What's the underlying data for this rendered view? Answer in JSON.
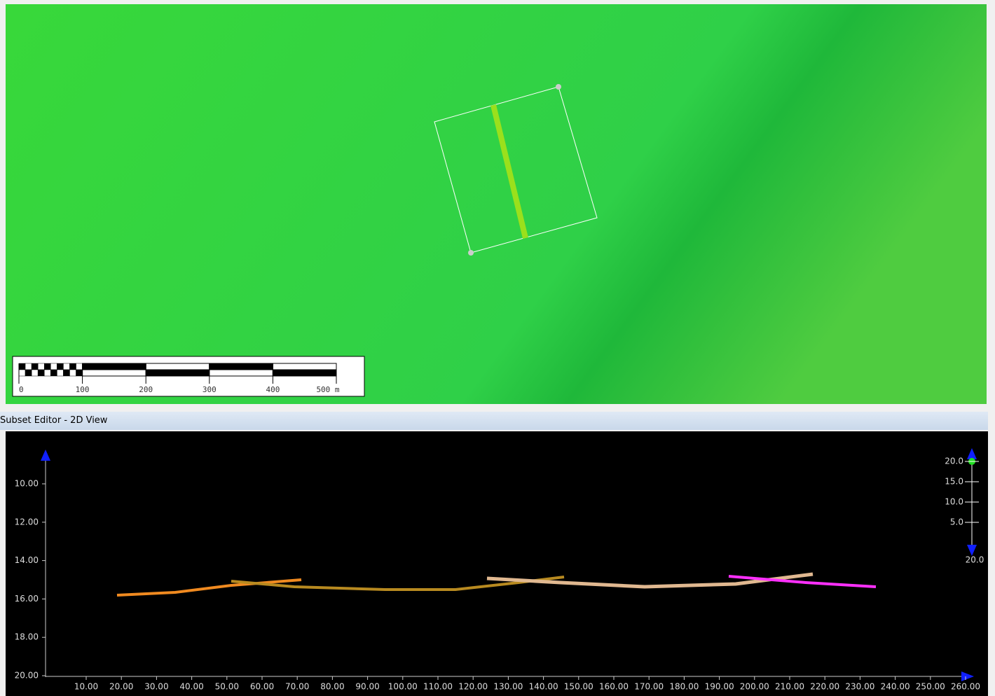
{
  "scale_bar": {
    "labels": [
      "0",
      "100",
      "200",
      "300",
      "400",
      "500 m"
    ]
  },
  "panel": {
    "title": "Subset Editor - 2D View"
  },
  "profile": {
    "yticks": [
      "10.00",
      "12.00",
      "14.00",
      "16.00",
      "18.00",
      "20.00"
    ],
    "xticks": [
      "10.00",
      "20.00",
      "30.00",
      "40.00",
      "50.00",
      "60.00",
      "70.00",
      "80.00",
      "90.00",
      "100.00",
      "110.00",
      "120.00",
      "130.00",
      "140.00",
      "150.00",
      "160.00",
      "170.00",
      "180.00",
      "190.00",
      "200.00",
      "210.00",
      "220.00",
      "230.00",
      "240.00",
      "250.00",
      "260.00"
    ]
  },
  "depth_scale": {
    "labels": [
      "20.0",
      "15.0",
      "10.0",
      "5.0"
    ],
    "bottom_label": "20.0"
  }
}
